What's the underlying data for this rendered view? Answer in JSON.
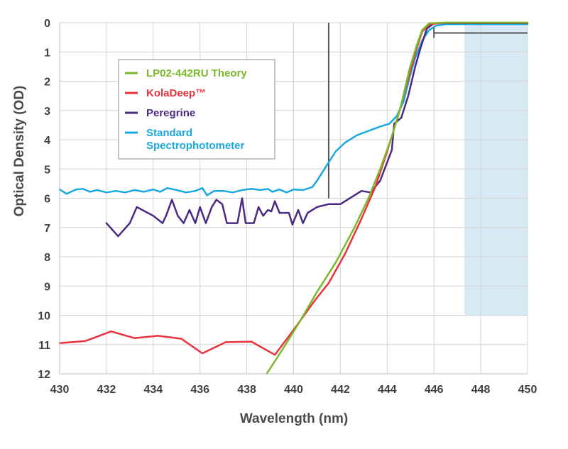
{
  "chart_data": {
    "type": "line",
    "title": "",
    "xlabel": "Wavelength (nm)",
    "ylabel": "Optical Density (OD)",
    "xlim": [
      430,
      450
    ],
    "ylim": [
      0,
      12
    ],
    "y_inverted": true,
    "grid": true,
    "x_ticks": [
      430,
      432,
      434,
      436,
      438,
      440,
      442,
      444,
      446,
      448,
      450
    ],
    "y_ticks": [
      0,
      1,
      2,
      3,
      4,
      5,
      6,
      7,
      8,
      9,
      10,
      11,
      12
    ],
    "legend_position": "upper-left",
    "series": [
      {
        "name": "LP02-442RU Theory",
        "color": "#7ab929",
        "points": [
          [
            438.85,
            12.0
          ],
          [
            439.5,
            11.2
          ],
          [
            440.2,
            10.3
          ],
          [
            441.0,
            9.2
          ],
          [
            441.8,
            8.2
          ],
          [
            442.6,
            7.0
          ],
          [
            443.2,
            6.0
          ],
          [
            443.7,
            5.0
          ],
          [
            444.2,
            3.9
          ],
          [
            444.6,
            2.8
          ],
          [
            444.95,
            1.6
          ],
          [
            445.25,
            0.8
          ],
          [
            445.5,
            0.25
          ],
          [
            445.8,
            0.02
          ],
          [
            446.5,
            0.0
          ],
          [
            450.0,
            0.0
          ]
        ]
      },
      {
        "name": "KolaDeep™",
        "color": "#e8333e",
        "points": [
          [
            430.0,
            10.95
          ],
          [
            431.1,
            10.88
          ],
          [
            432.2,
            10.55
          ],
          [
            433.2,
            10.78
          ],
          [
            434.2,
            10.7
          ],
          [
            435.2,
            10.8
          ],
          [
            436.1,
            11.3
          ],
          [
            437.1,
            10.92
          ],
          [
            438.2,
            10.9
          ],
          [
            439.2,
            11.35
          ],
          [
            440.0,
            10.5
          ],
          [
            440.9,
            9.5
          ],
          [
            441.5,
            8.9
          ],
          [
            442.2,
            7.9
          ],
          [
            442.9,
            6.7
          ],
          [
            443.5,
            5.6
          ],
          [
            444.0,
            4.4
          ],
          [
            444.5,
            3.1
          ],
          [
            444.9,
            1.9
          ],
          [
            445.25,
            0.9
          ],
          [
            445.5,
            0.3
          ],
          [
            445.8,
            0.05
          ],
          [
            446.5,
            0.0
          ],
          [
            450.0,
            0.0
          ]
        ]
      },
      {
        "name": "Peregrine",
        "color": "#4b2a84",
        "points": [
          [
            432.0,
            6.85
          ],
          [
            432.5,
            7.3
          ],
          [
            433.0,
            6.85
          ],
          [
            433.3,
            6.3
          ],
          [
            434.0,
            6.6
          ],
          [
            434.4,
            6.85
          ],
          [
            434.55,
            6.6
          ],
          [
            434.8,
            6.05
          ],
          [
            435.05,
            6.6
          ],
          [
            435.3,
            6.85
          ],
          [
            435.55,
            6.4
          ],
          [
            435.8,
            6.85
          ],
          [
            436.0,
            6.3
          ],
          [
            436.25,
            6.85
          ],
          [
            436.5,
            6.3
          ],
          [
            436.7,
            6.05
          ],
          [
            436.95,
            6.2
          ],
          [
            437.15,
            6.85
          ],
          [
            437.6,
            6.85
          ],
          [
            437.8,
            6.0
          ],
          [
            437.95,
            6.85
          ],
          [
            438.3,
            6.85
          ],
          [
            438.5,
            6.3
          ],
          [
            438.7,
            6.6
          ],
          [
            438.9,
            6.4
          ],
          [
            439.05,
            6.45
          ],
          [
            439.2,
            6.1
          ],
          [
            439.4,
            6.5
          ],
          [
            439.8,
            6.5
          ],
          [
            439.95,
            6.9
          ],
          [
            440.2,
            6.4
          ],
          [
            440.4,
            6.85
          ],
          [
            440.6,
            6.5
          ],
          [
            441.0,
            6.3
          ],
          [
            441.5,
            6.2
          ],
          [
            442.0,
            6.2
          ],
          [
            442.5,
            5.95
          ],
          [
            442.9,
            5.75
          ],
          [
            443.3,
            5.8
          ],
          [
            443.7,
            5.4
          ],
          [
            444.2,
            4.35
          ],
          [
            444.3,
            3.45
          ],
          [
            444.6,
            3.25
          ],
          [
            444.9,
            2.5
          ],
          [
            445.2,
            1.5
          ],
          [
            445.45,
            0.8
          ],
          [
            445.7,
            0.2
          ],
          [
            446.0,
            0.02
          ],
          [
            450.0,
            0.02
          ]
        ]
      },
      {
        "name": "Standard Spectrophotometer",
        "color": "#1ba8e0",
        "points": [
          [
            430.0,
            5.7
          ],
          [
            430.3,
            5.85
          ],
          [
            430.7,
            5.7
          ],
          [
            431.0,
            5.68
          ],
          [
            431.3,
            5.78
          ],
          [
            431.6,
            5.72
          ],
          [
            432.0,
            5.8
          ],
          [
            432.4,
            5.75
          ],
          [
            432.8,
            5.8
          ],
          [
            433.2,
            5.72
          ],
          [
            433.6,
            5.78
          ],
          [
            434.0,
            5.7
          ],
          [
            434.3,
            5.78
          ],
          [
            434.6,
            5.65
          ],
          [
            435.0,
            5.72
          ],
          [
            435.4,
            5.8
          ],
          [
            435.8,
            5.75
          ],
          [
            436.1,
            5.65
          ],
          [
            436.3,
            5.9
          ],
          [
            436.6,
            5.75
          ],
          [
            437.0,
            5.75
          ],
          [
            437.4,
            5.8
          ],
          [
            437.8,
            5.72
          ],
          [
            438.2,
            5.68
          ],
          [
            438.6,
            5.72
          ],
          [
            438.9,
            5.68
          ],
          [
            439.1,
            5.78
          ],
          [
            439.4,
            5.7
          ],
          [
            439.7,
            5.8
          ],
          [
            440.0,
            5.7
          ],
          [
            440.4,
            5.72
          ],
          [
            440.8,
            5.62
          ],
          [
            441.0,
            5.4
          ],
          [
            441.4,
            4.9
          ],
          [
            441.8,
            4.4
          ],
          [
            442.2,
            4.1
          ],
          [
            442.7,
            3.85
          ],
          [
            443.2,
            3.7
          ],
          [
            443.7,
            3.55
          ],
          [
            444.1,
            3.45
          ],
          [
            444.4,
            3.2
          ],
          [
            444.7,
            2.7
          ],
          [
            444.95,
            1.9
          ],
          [
            445.2,
            1.2
          ],
          [
            445.5,
            0.6
          ],
          [
            445.8,
            0.25
          ],
          [
            446.1,
            0.1
          ],
          [
            446.5,
            0.05
          ],
          [
            450.0,
            0.05
          ]
        ]
      }
    ],
    "annotations": {
      "vertical_marker_x": 441.5,
      "vertical_marker_y_range": [
        0,
        6.0
      ],
      "bracket_x_range": [
        446.0,
        450.0
      ],
      "bracket_y": 0.35,
      "shaded_x_range": [
        447.3,
        450.0
      ],
      "shaded_y_range": [
        0,
        10.0
      ],
      "shaded_color": "#d6e9f5",
      "marker_color": "#555555"
    }
  },
  "legend": {
    "items": [
      {
        "label": "LP02-442RU Theory",
        "color": "#7ab929"
      },
      {
        "label": "KolaDeep™",
        "color": "#e8333e"
      },
      {
        "label": "Peregrine",
        "color": "#4b2a84"
      },
      {
        "label": "Standard",
        "label2": "Spectrophotometer",
        "color": "#1ba8e0"
      }
    ]
  }
}
